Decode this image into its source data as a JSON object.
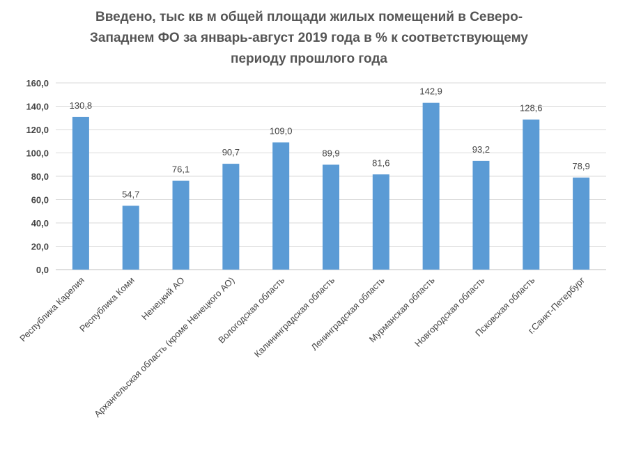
{
  "chart_data": {
    "type": "bar",
    "title_lines": [
      "Введено, тыс кв м общей площади жилых помещений в Северо-",
      "Западнем ФО за январь-август 2019 года в % к соответствующему",
      "периоду прошлого года"
    ],
    "categories": [
      "Республика Карелия",
      "Республика Коми",
      "Ненецкий АО",
      "Архангельская область (кроме Ненецкого АО)",
      "Вологодская область",
      "Калининградская область",
      "Ленинградская область",
      "Мурманская область",
      "Новгородская область",
      "Псковская область",
      "г.Санкт-Петербург"
    ],
    "values": [
      130.8,
      54.7,
      76.1,
      90.7,
      109.0,
      89.9,
      81.6,
      142.9,
      93.2,
      128.6,
      78.9
    ],
    "value_labels": [
      "130,8",
      "54,7",
      "76,1",
      "90,7",
      "109,0",
      "89,9",
      "81,6",
      "142,9",
      "93,2",
      "128,6",
      "78,9"
    ],
    "y_ticks": [
      "0,0",
      "20,0",
      "40,0",
      "60,0",
      "80,0",
      "100,0",
      "120,0",
      "140,0",
      "160,0"
    ],
    "ylim": [
      0,
      160
    ],
    "grid": true,
    "legend": "none",
    "bar_color": "#5b9bd5",
    "grid_color": "#d9d9d9"
  }
}
